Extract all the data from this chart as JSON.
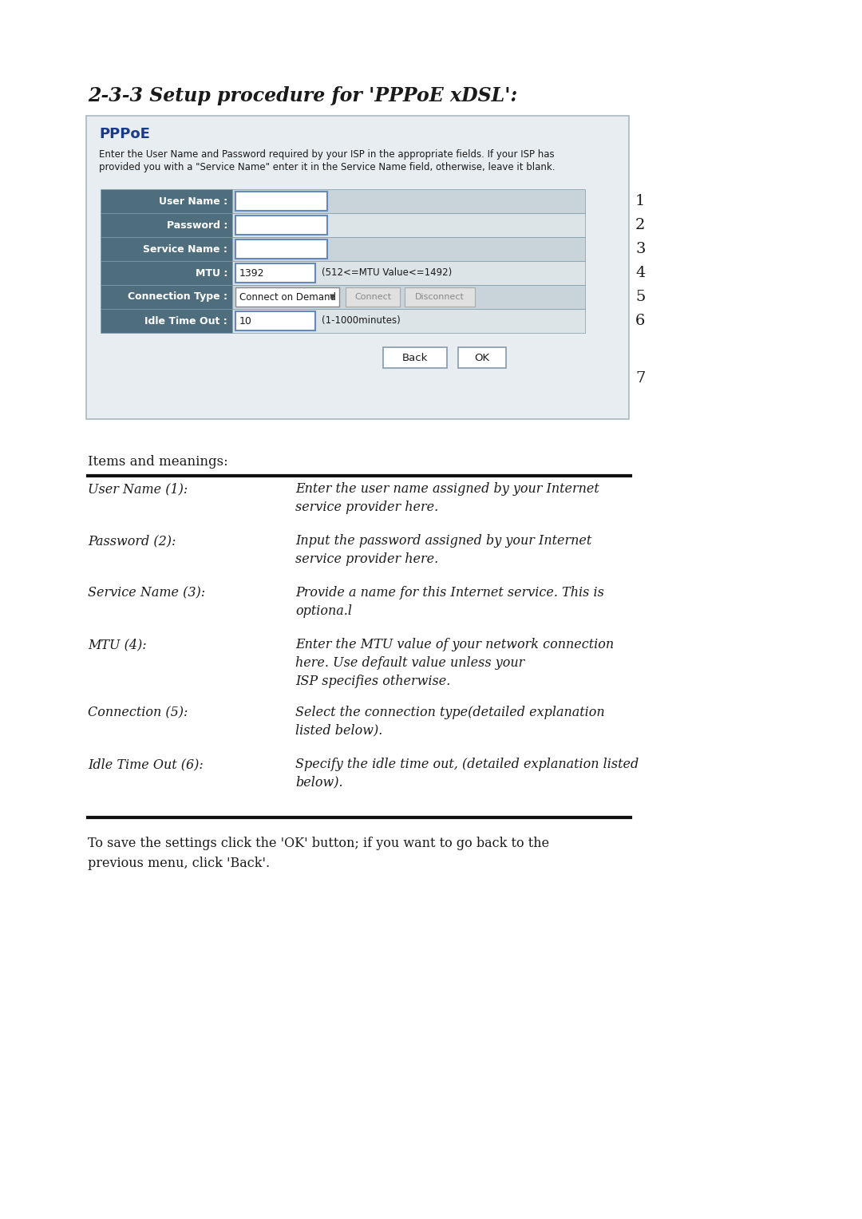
{
  "title": "2-3-3 Setup procedure for 'PPPoE xDSL':",
  "bg_color": "#ffffff",
  "box_bg": "#e8edf2",
  "header_bg": "#4e6e7e",
  "pppoe_title": "PPPoE",
  "pppoe_title_color": "#1a3a8a",
  "pppoe_desc_line1": "Enter the User Name and Password required by your ISP in the appropriate fields. If your ISP has",
  "pppoe_desc_line2": "provided you with a \"Service Name\" enter it in the Service Name field, otherwise, leave it blank.",
  "form_rows": [
    {
      "label": "User Name :",
      "value": "",
      "extra": "",
      "num": "1",
      "type": "input"
    },
    {
      "label": "Password :",
      "value": "",
      "extra": "",
      "num": "2",
      "type": "input"
    },
    {
      "label": "Service Name :",
      "value": "",
      "extra": "",
      "num": "3",
      "type": "input"
    },
    {
      "label": "MTU :",
      "value": "1392",
      "extra": "(512<=MTU Value<=1492)",
      "num": "4",
      "type": "mtu"
    },
    {
      "label": "Connection Type :",
      "value": "Connect on Demand",
      "extra": "",
      "num": "5",
      "type": "connection"
    },
    {
      "label": "Idle Time Out :",
      "value": "10",
      "extra": "(1-1000minutes)",
      "num": "6",
      "type": "idle"
    }
  ],
  "num7_label": "7",
  "button_back": "Back",
  "button_ok": "OK",
  "items_header": "Items and meanings:",
  "items": [
    {
      "label": "User Name (1):",
      "desc": "Enter the user name assigned by your Internet\nservice provider here."
    },
    {
      "label": "Password (2):",
      "desc": "Input the password assigned by your Internet\nservice provider here."
    },
    {
      "label": "Service Name (3):",
      "desc": "Provide a name for this Internet service. This is\noptiona.l"
    },
    {
      "label": "MTU (4):",
      "desc": "Enter the MTU value of your network connection\nhere. Use default value unless your\nISP specifies otherwise."
    },
    {
      "label": "Connection (5):",
      "desc": "Select the connection type(detailed explanation\nlisted below)."
    },
    {
      "label": "Idle Time Out (6):",
      "desc": "Specify the idle time out, (detailed explanation listed\nbelow)."
    }
  ],
  "footer_line1": "To save the settings click the 'OK' button; if you want to go back to the",
  "footer_line2": "previous menu, click 'Back'."
}
